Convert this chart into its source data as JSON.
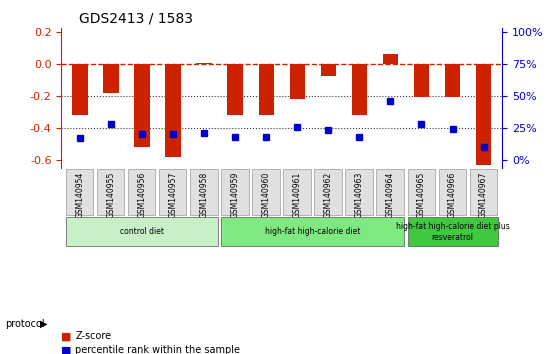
{
  "title": "GDS2413 / 1583",
  "samples": [
    "GSM140954",
    "GSM140955",
    "GSM140956",
    "GSM140957",
    "GSM140958",
    "GSM140959",
    "GSM140960",
    "GSM140961",
    "GSM140962",
    "GSM140963",
    "GSM140964",
    "GSM140965",
    "GSM140966",
    "GSM140967"
  ],
  "z_scores": [
    -0.32,
    -0.18,
    -0.52,
    -0.58,
    0.005,
    -0.32,
    -0.32,
    -0.22,
    -0.08,
    -0.32,
    0.06,
    -0.21,
    -0.21,
    -0.63
  ],
  "percentile_ranks": [
    17,
    28,
    20,
    20,
    21,
    18,
    18,
    26,
    23,
    18,
    46,
    28,
    24,
    10
  ],
  "groups": [
    {
      "label": "control diet",
      "start": 0,
      "end": 5,
      "color": "#c8f0c8"
    },
    {
      "label": "high-fat high-calorie diet",
      "start": 5,
      "end": 11,
      "color": "#80e880"
    },
    {
      "label": "high-fat high-calorie diet plus\nresveratrol",
      "start": 11,
      "end": 14,
      "color": "#40c840"
    }
  ],
  "ylim": [
    -0.65,
    0.22
  ],
  "y_left_ticks": [
    0.2,
    0.0,
    -0.2,
    -0.4,
    -0.6
  ],
  "y_right_ticks": [
    100,
    75,
    50,
    25,
    0
  ],
  "bar_color": "#cc2200",
  "dot_color": "#0000cc",
  "hline_color": "#cc2200",
  "dotted_line_color": "#333333",
  "background_color": "#ffffff",
  "bar_width": 0.5
}
